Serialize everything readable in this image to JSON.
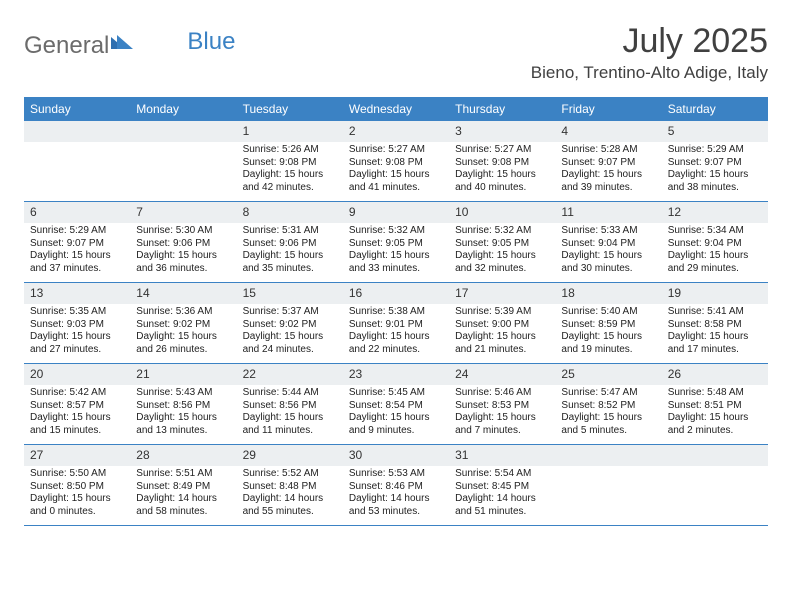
{
  "logo": {
    "text_gray": "General",
    "text_blue": "Blue"
  },
  "header": {
    "month_title": "July 2025",
    "location": "Bieno, Trentino-Alto Adige, Italy"
  },
  "colors": {
    "header_bar": "#3b82c4",
    "daynum_bg": "#eceff1",
    "text": "#222222",
    "title_text": "#404040"
  },
  "day_names": [
    "Sunday",
    "Monday",
    "Tuesday",
    "Wednesday",
    "Thursday",
    "Friday",
    "Saturday"
  ],
  "weeks": [
    [
      {
        "num": "",
        "sunrise": "",
        "sunset": "",
        "daylight": ""
      },
      {
        "num": "",
        "sunrise": "",
        "sunset": "",
        "daylight": ""
      },
      {
        "num": "1",
        "sunrise": "Sunrise: 5:26 AM",
        "sunset": "Sunset: 9:08 PM",
        "daylight": "Daylight: 15 hours and 42 minutes."
      },
      {
        "num": "2",
        "sunrise": "Sunrise: 5:27 AM",
        "sunset": "Sunset: 9:08 PM",
        "daylight": "Daylight: 15 hours and 41 minutes."
      },
      {
        "num": "3",
        "sunrise": "Sunrise: 5:27 AM",
        "sunset": "Sunset: 9:08 PM",
        "daylight": "Daylight: 15 hours and 40 minutes."
      },
      {
        "num": "4",
        "sunrise": "Sunrise: 5:28 AM",
        "sunset": "Sunset: 9:07 PM",
        "daylight": "Daylight: 15 hours and 39 minutes."
      },
      {
        "num": "5",
        "sunrise": "Sunrise: 5:29 AM",
        "sunset": "Sunset: 9:07 PM",
        "daylight": "Daylight: 15 hours and 38 minutes."
      }
    ],
    [
      {
        "num": "6",
        "sunrise": "Sunrise: 5:29 AM",
        "sunset": "Sunset: 9:07 PM",
        "daylight": "Daylight: 15 hours and 37 minutes."
      },
      {
        "num": "7",
        "sunrise": "Sunrise: 5:30 AM",
        "sunset": "Sunset: 9:06 PM",
        "daylight": "Daylight: 15 hours and 36 minutes."
      },
      {
        "num": "8",
        "sunrise": "Sunrise: 5:31 AM",
        "sunset": "Sunset: 9:06 PM",
        "daylight": "Daylight: 15 hours and 35 minutes."
      },
      {
        "num": "9",
        "sunrise": "Sunrise: 5:32 AM",
        "sunset": "Sunset: 9:05 PM",
        "daylight": "Daylight: 15 hours and 33 minutes."
      },
      {
        "num": "10",
        "sunrise": "Sunrise: 5:32 AM",
        "sunset": "Sunset: 9:05 PM",
        "daylight": "Daylight: 15 hours and 32 minutes."
      },
      {
        "num": "11",
        "sunrise": "Sunrise: 5:33 AM",
        "sunset": "Sunset: 9:04 PM",
        "daylight": "Daylight: 15 hours and 30 minutes."
      },
      {
        "num": "12",
        "sunrise": "Sunrise: 5:34 AM",
        "sunset": "Sunset: 9:04 PM",
        "daylight": "Daylight: 15 hours and 29 minutes."
      }
    ],
    [
      {
        "num": "13",
        "sunrise": "Sunrise: 5:35 AM",
        "sunset": "Sunset: 9:03 PM",
        "daylight": "Daylight: 15 hours and 27 minutes."
      },
      {
        "num": "14",
        "sunrise": "Sunrise: 5:36 AM",
        "sunset": "Sunset: 9:02 PM",
        "daylight": "Daylight: 15 hours and 26 minutes."
      },
      {
        "num": "15",
        "sunrise": "Sunrise: 5:37 AM",
        "sunset": "Sunset: 9:02 PM",
        "daylight": "Daylight: 15 hours and 24 minutes."
      },
      {
        "num": "16",
        "sunrise": "Sunrise: 5:38 AM",
        "sunset": "Sunset: 9:01 PM",
        "daylight": "Daylight: 15 hours and 22 minutes."
      },
      {
        "num": "17",
        "sunrise": "Sunrise: 5:39 AM",
        "sunset": "Sunset: 9:00 PM",
        "daylight": "Daylight: 15 hours and 21 minutes."
      },
      {
        "num": "18",
        "sunrise": "Sunrise: 5:40 AM",
        "sunset": "Sunset: 8:59 PM",
        "daylight": "Daylight: 15 hours and 19 minutes."
      },
      {
        "num": "19",
        "sunrise": "Sunrise: 5:41 AM",
        "sunset": "Sunset: 8:58 PM",
        "daylight": "Daylight: 15 hours and 17 minutes."
      }
    ],
    [
      {
        "num": "20",
        "sunrise": "Sunrise: 5:42 AM",
        "sunset": "Sunset: 8:57 PM",
        "daylight": "Daylight: 15 hours and 15 minutes."
      },
      {
        "num": "21",
        "sunrise": "Sunrise: 5:43 AM",
        "sunset": "Sunset: 8:56 PM",
        "daylight": "Daylight: 15 hours and 13 minutes."
      },
      {
        "num": "22",
        "sunrise": "Sunrise: 5:44 AM",
        "sunset": "Sunset: 8:56 PM",
        "daylight": "Daylight: 15 hours and 11 minutes."
      },
      {
        "num": "23",
        "sunrise": "Sunrise: 5:45 AM",
        "sunset": "Sunset: 8:54 PM",
        "daylight": "Daylight: 15 hours and 9 minutes."
      },
      {
        "num": "24",
        "sunrise": "Sunrise: 5:46 AM",
        "sunset": "Sunset: 8:53 PM",
        "daylight": "Daylight: 15 hours and 7 minutes."
      },
      {
        "num": "25",
        "sunrise": "Sunrise: 5:47 AM",
        "sunset": "Sunset: 8:52 PM",
        "daylight": "Daylight: 15 hours and 5 minutes."
      },
      {
        "num": "26",
        "sunrise": "Sunrise: 5:48 AM",
        "sunset": "Sunset: 8:51 PM",
        "daylight": "Daylight: 15 hours and 2 minutes."
      }
    ],
    [
      {
        "num": "27",
        "sunrise": "Sunrise: 5:50 AM",
        "sunset": "Sunset: 8:50 PM",
        "daylight": "Daylight: 15 hours and 0 minutes."
      },
      {
        "num": "28",
        "sunrise": "Sunrise: 5:51 AM",
        "sunset": "Sunset: 8:49 PM",
        "daylight": "Daylight: 14 hours and 58 minutes."
      },
      {
        "num": "29",
        "sunrise": "Sunrise: 5:52 AM",
        "sunset": "Sunset: 8:48 PM",
        "daylight": "Daylight: 14 hours and 55 minutes."
      },
      {
        "num": "30",
        "sunrise": "Sunrise: 5:53 AM",
        "sunset": "Sunset: 8:46 PM",
        "daylight": "Daylight: 14 hours and 53 minutes."
      },
      {
        "num": "31",
        "sunrise": "Sunrise: 5:54 AM",
        "sunset": "Sunset: 8:45 PM",
        "daylight": "Daylight: 14 hours and 51 minutes."
      },
      {
        "num": "",
        "sunrise": "",
        "sunset": "",
        "daylight": ""
      },
      {
        "num": "",
        "sunrise": "",
        "sunset": "",
        "daylight": ""
      }
    ]
  ]
}
